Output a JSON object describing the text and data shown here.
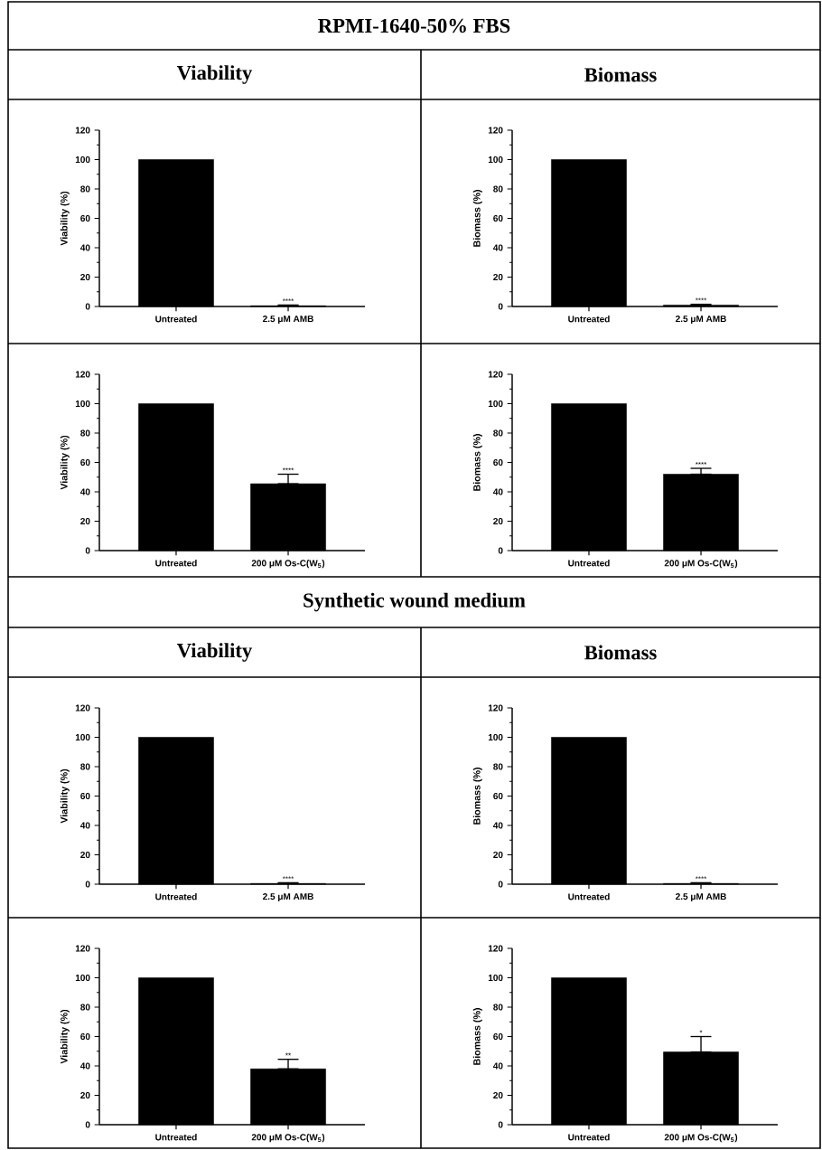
{
  "chart_data": [
    {
      "type": "other",
      "title": "RPMI-1640-50% FBS"
    },
    {
      "type": "bar",
      "subtitle": "Viability",
      "ylabel": "Viability (%)",
      "categories": [
        "Untreated",
        "2.5 μM AMB"
      ],
      "values": [
        100,
        0.5
      ],
      "errors": [
        null,
        [
          0.5,
          1
        ]
      ],
      "color": "#000000",
      "ylim": [
        0,
        120
      ],
      "yticks": [
        0,
        {
          "value": 10,
          "label": null
        },
        20,
        {
          "value": 30,
          "label": null
        },
        40,
        {
          "value": 50,
          "label": null
        },
        60,
        {
          "value": 70,
          "label": null
        },
        80,
        {
          "value": 90,
          "label": null
        },
        100,
        {
          "value": 110,
          "label": null
        },
        120
      ],
      "annotations": [
        {
          "text": "****",
          "x": "2.5 μM AMB",
          "y": 1
        }
      ]
    },
    {
      "type": "bar",
      "subtitle": "Biomass",
      "ylabel": "Biomass (%)",
      "categories": [
        "Untreated",
        "2.5 μM AMB"
      ],
      "values": [
        100,
        1
      ],
      "errors": [
        null,
        [
          1,
          1.5
        ]
      ],
      "color": "#000000",
      "ylim": [
        0,
        120
      ],
      "yticks": [
        0,
        {
          "value": 10,
          "label": null
        },
        20,
        {
          "value": 30,
          "label": null
        },
        40,
        {
          "value": 50,
          "label": null
        },
        60,
        {
          "value": 70,
          "label": null
        },
        80,
        {
          "value": 90,
          "label": null
        },
        100,
        {
          "value": 110,
          "label": null
        },
        120
      ],
      "annotations": [
        {
          "text": "****",
          "x": "2.5 μM AMB",
          "y": 1.5
        }
      ]
    },
    {
      "type": "bar",
      "ylabel": "Viability (%)",
      "categories": [
        "Untreated",
        "200 μM Os-C(W$_{5}$)"
      ],
      "values": [
        100,
        45.5
      ],
      "errors": [
        null,
        [
          45.5,
          52
        ]
      ],
      "color": "#000000",
      "ylim": [
        0,
        120
      ],
      "yticks": [
        0,
        {
          "value": 10,
          "label": null
        },
        20,
        {
          "value": 30,
          "label": null
        },
        40,
        {
          "value": 50,
          "label": null
        },
        60,
        {
          "value": 70,
          "label": null
        },
        80,
        {
          "value": 90,
          "label": null
        },
        100,
        {
          "value": 110,
          "label": null
        },
        120
      ],
      "annotations": [
        {
          "text": "****",
          "x": "200 μM Os-C(W$_{5}$)",
          "y": 52
        }
      ]
    },
    {
      "type": "bar",
      "ylabel": "Biomass (%)",
      "categories": [
        "Untreated",
        "200 μM Os-C(W$_{5}$)"
      ],
      "values": [
        100,
        52
      ],
      "errors": [
        null,
        [
          52,
          56
        ]
      ],
      "color": "#000000",
      "ylim": [
        0,
        120
      ],
      "yticks": [
        0,
        {
          "value": 10,
          "label": null
        },
        20,
        {
          "value": 30,
          "label": null
        },
        40,
        {
          "value": 50,
          "label": null
        },
        60,
        {
          "value": 70,
          "label": null
        },
        80,
        {
          "value": 90,
          "label": null
        },
        100,
        {
          "value": 110,
          "label": null
        },
        120
      ],
      "annotations": [
        {
          "text": "****",
          "x": "200 μM Os-C(W$_{5}$)",
          "y": 56
        }
      ]
    },
    {
      "type": "other",
      "title": "Synthetic wound medium"
    },
    {
      "type": "bar",
      "subtitle": "Viability",
      "ylabel": "Viability (%)",
      "categories": [
        "Untreated",
        "2.5 μM AMB"
      ],
      "values": [
        100,
        0.5
      ],
      "errors": [
        null,
        [
          0.5,
          1
        ]
      ],
      "color": "#000000",
      "ylim": [
        0,
        120
      ],
      "yticks": [
        0,
        {
          "value": 10,
          "label": null
        },
        20,
        {
          "value": 30,
          "label": null
        },
        40,
        {
          "value": 50,
          "label": null
        },
        60,
        {
          "value": 70,
          "label": null
        },
        80,
        {
          "value": 90,
          "label": null
        },
        100,
        {
          "value": 110,
          "label": null
        },
        120
      ],
      "annotations": [
        {
          "text": "****",
          "x": "2.5 μM AMB",
          "y": 1
        }
      ]
    },
    {
      "type": "bar",
      "subtitle": "Biomass",
      "ylabel": "Biomass (%)",
      "categories": [
        "Untreated",
        "2.5 μM AMB"
      ],
      "values": [
        100,
        0.5
      ],
      "errors": [
        null,
        [
          0.5,
          1
        ]
      ],
      "color": "#000000",
      "ylim": [
        0,
        120
      ],
      "yticks": [
        0,
        {
          "value": 10,
          "label": null
        },
        20,
        {
          "value": 30,
          "label": null
        },
        40,
        {
          "value": 50,
          "label": null
        },
        60,
        {
          "value": 70,
          "label": null
        },
        80,
        {
          "value": 90,
          "label": null
        },
        100,
        {
          "value": 110,
          "label": null
        },
        120
      ],
      "annotations": [
        {
          "text": "****",
          "x": "2.5 μM AMB",
          "y": 1
        }
      ]
    },
    {
      "type": "bar",
      "ylabel": "Viability (%)",
      "categories": [
        "Untreated",
        "200 μM Os-C(W$_{5}$)"
      ],
      "values": [
        100,
        38
      ],
      "errors": [
        null,
        [
          38,
          44.5
        ]
      ],
      "color": "#000000",
      "ylim": [
        0,
        120
      ],
      "yticks": [
        0,
        {
          "value": 10,
          "label": null
        },
        20,
        {
          "value": 30,
          "label": null
        },
        40,
        {
          "value": 50,
          "label": null
        },
        60,
        {
          "value": 70,
          "label": null
        },
        80,
        {
          "value": 90,
          "label": null
        },
        100,
        {
          "value": 110,
          "label": null
        },
        120
      ],
      "annotations": [
        {
          "text": "**",
          "x": "200 μM Os-C(W$_{5}$)",
          "y": 44.5
        }
      ]
    },
    {
      "type": "bar",
      "ylabel": "Biomass (%)",
      "categories": [
        "Untreated",
        "200 μM Os-C(W$_{5}$)"
      ],
      "values": [
        100,
        49.5
      ],
      "errors": [
        null,
        [
          49.5,
          60
        ]
      ],
      "color": "#000000",
      "ylim": [
        0,
        120
      ],
      "yticks": [
        0,
        {
          "value": 10,
          "label": null
        },
        20,
        {
          "value": 30,
          "label": null
        },
        40,
        {
          "value": 50,
          "label": null
        },
        60,
        {
          "value": 70,
          "label": null
        },
        80,
        {
          "value": 90,
          "label": null
        },
        100,
        {
          "value": 110,
          "label": null
        },
        120
      ],
      "annotations": [
        {
          "text": "*",
          "x": "200 μM Os-C(W$_{5}$)",
          "y": 60
        }
      ]
    }
  ]
}
